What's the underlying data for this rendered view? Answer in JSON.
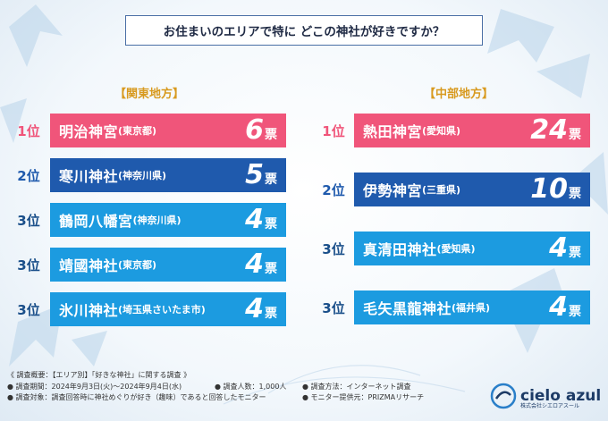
{
  "title": "お住まいのエリアで特に どこの神社が好きですか？",
  "colors": {
    "rank1": "#f0557a",
    "rank2": "#1f5aad",
    "rank3": "#1c9be0",
    "region_label": "#d89a1f"
  },
  "kanto": {
    "label": "【関東地方】",
    "items": [
      {
        "rank": "1位",
        "name": "明治神宮",
        "pref": "(東京都)",
        "votes": "6",
        "unit": "票",
        "tier": 1
      },
      {
        "rank": "2位",
        "name": "寒川神社",
        "pref": "(神奈川県)",
        "votes": "5",
        "unit": "票",
        "tier": 2
      },
      {
        "rank": "3位",
        "name": "鶴岡八幡宮",
        "pref": "(神奈川県)",
        "votes": "4",
        "unit": "票",
        "tier": 3
      },
      {
        "rank": "3位",
        "name": "靖國神社",
        "pref": "(東京都)",
        "votes": "4",
        "unit": "票",
        "tier": 3
      },
      {
        "rank": "3位",
        "name": "氷川神社",
        "pref": "(埼玉県さいたま市)",
        "votes": "4",
        "unit": "票",
        "tier": 3
      }
    ]
  },
  "chubu": {
    "label": "【中部地方】",
    "items": [
      {
        "rank": "1位",
        "name": "熱田神宮",
        "pref": "(愛知県)",
        "votes": "24",
        "unit": "票",
        "tier": 1
      },
      {
        "rank": "2位",
        "name": "伊勢神宮",
        "pref": "(三重県)",
        "votes": "10",
        "unit": "票",
        "tier": 2
      },
      {
        "rank": "3位",
        "name": "真清田神社",
        "pref": "(愛知県)",
        "votes": "4",
        "unit": "票",
        "tier": 3
      },
      {
        "rank": "3位",
        "name": "毛矢黒龍神社",
        "pref": "(福井県)",
        "votes": "4",
        "unit": "票",
        "tier": 3
      }
    ]
  },
  "notes": {
    "line1": "《 調査概要：【エリア別】「好きな神社」に関する調査 》",
    "period": "● 調査期間：2024年9月3日(火)～2024年9月4日(水)",
    "count": "● 調査人数：1,000人",
    "method": "● 調査方法：インターネット調査",
    "target": "● 調査対象：調査回答時に神社めぐりが好き（趣味）であると回答したモニター",
    "provider": "● モニター提供元：PRIZMAリサーチ"
  },
  "logo": {
    "word": "cielo azul",
    "sub": "株式会社シエロアスール"
  }
}
